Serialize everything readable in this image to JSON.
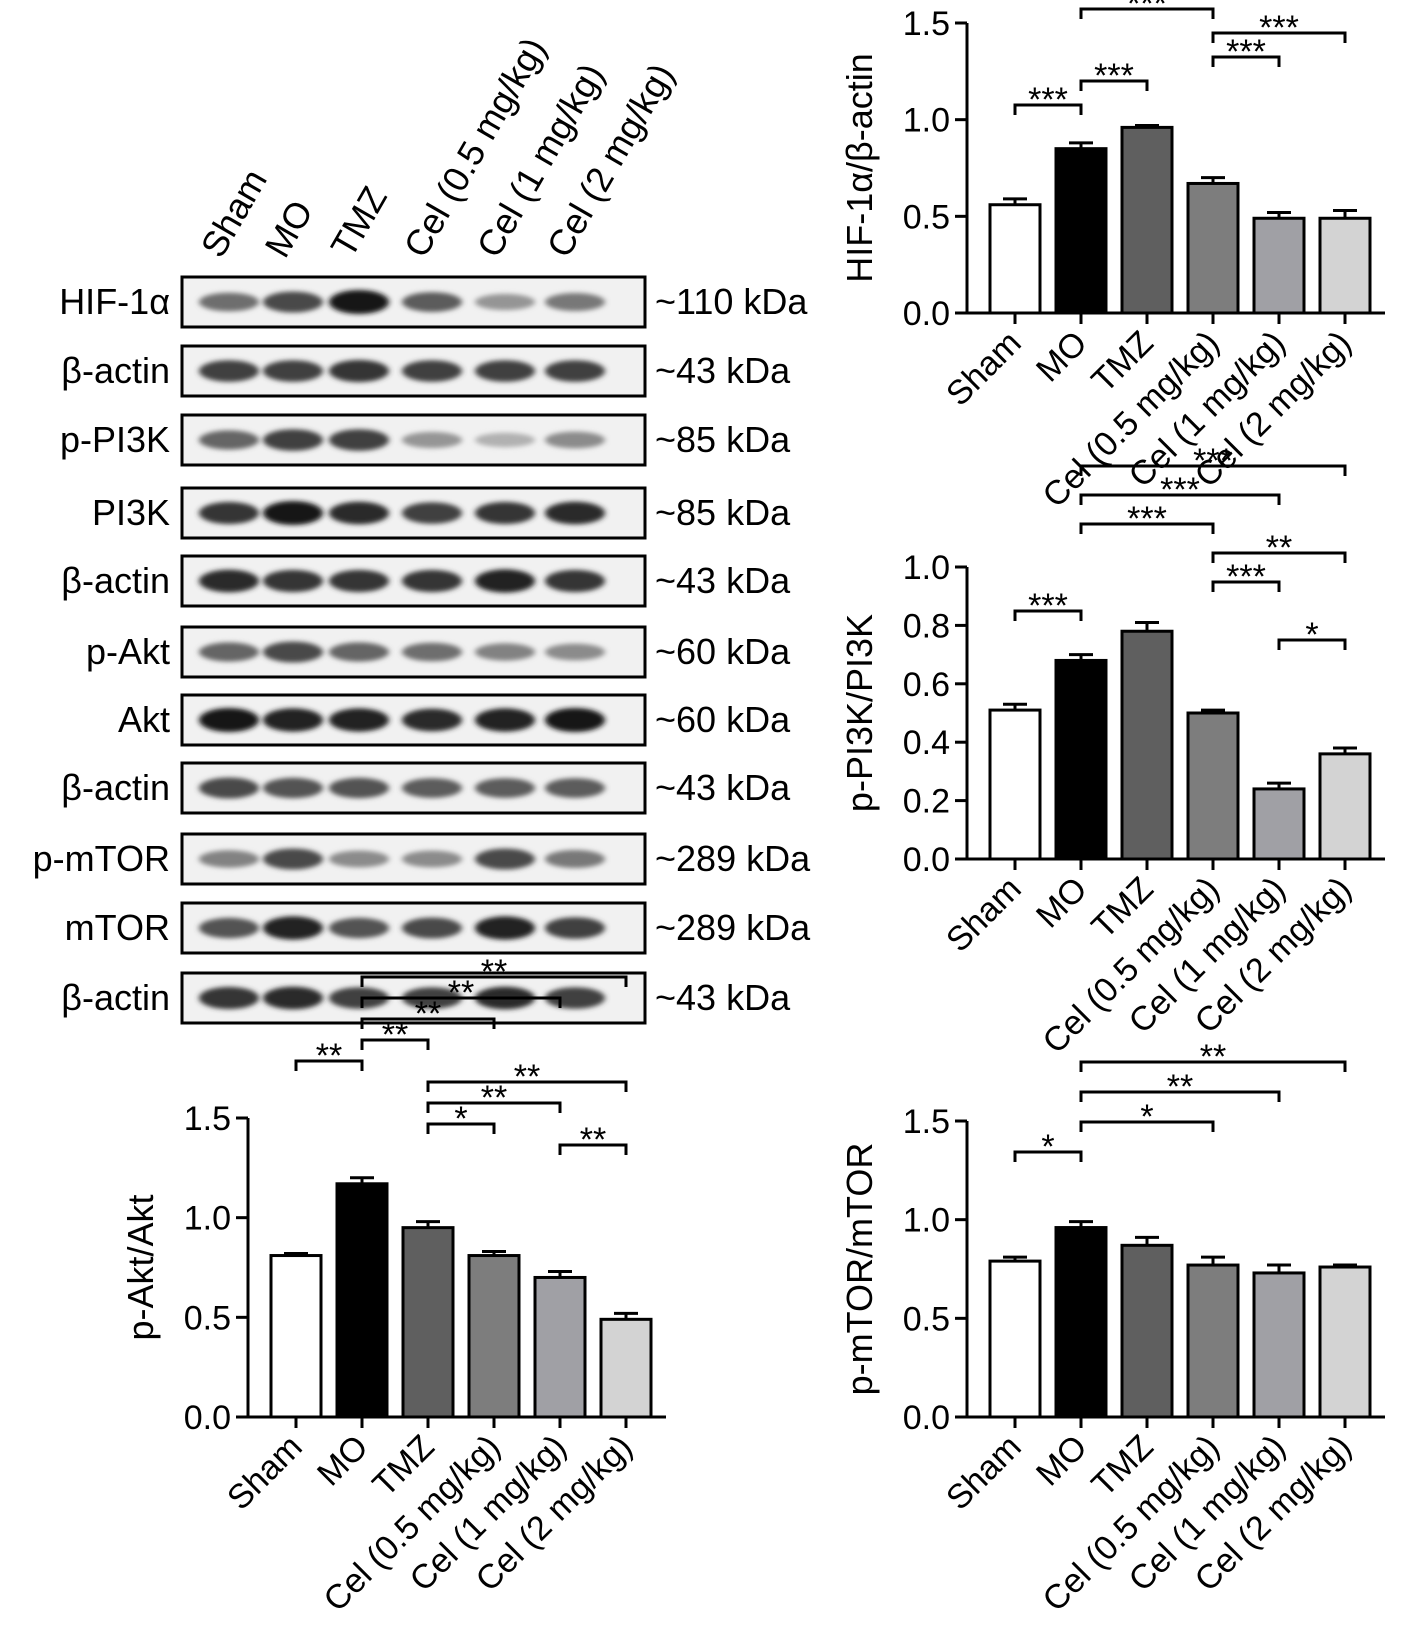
{
  "blot": {
    "lanes": [
      "Sham",
      "MO",
      "TMZ",
      "Cel (0.5 mg/kg)",
      "Cel (1 mg/kg)",
      "Cel (2 mg/kg)"
    ],
    "rows": [
      {
        "label": "HIF-1α",
        "size": "~110 kDa",
        "intensity": [
          0.55,
          0.75,
          1.0,
          0.65,
          0.35,
          0.5
        ]
      },
      {
        "label": "β-actin",
        "size": "~43 kDa",
        "intensity": [
          0.8,
          0.8,
          0.85,
          0.8,
          0.8,
          0.8
        ]
      },
      {
        "label": "p-PI3K",
        "size": "~85 kDa",
        "intensity": [
          0.6,
          0.8,
          0.8,
          0.35,
          0.2,
          0.4
        ]
      },
      {
        "label": "PI3K",
        "size": "~85 kDa",
        "intensity": [
          0.85,
          1.0,
          0.9,
          0.8,
          0.85,
          0.9
        ]
      },
      {
        "label": "β-actin",
        "size": "~43 kDa",
        "intensity": [
          0.9,
          0.85,
          0.85,
          0.85,
          0.95,
          0.85
        ]
      },
      {
        "label": "p-Akt",
        "size": "~60 kDa",
        "intensity": [
          0.6,
          0.75,
          0.6,
          0.55,
          0.45,
          0.4
        ]
      },
      {
        "label": "Akt",
        "size": "~60 kDa",
        "intensity": [
          1.0,
          0.95,
          0.95,
          0.9,
          0.95,
          1.0
        ]
      },
      {
        "label": "β-actin",
        "size": "~43 kDa",
        "intensity": [
          0.75,
          0.7,
          0.7,
          0.65,
          0.65,
          0.65
        ]
      },
      {
        "label": "p-mTOR",
        "size": "~289 kDa",
        "intensity": [
          0.45,
          0.75,
          0.4,
          0.4,
          0.75,
          0.5
        ]
      },
      {
        "label": "mTOR",
        "size": "~289 kDa",
        "intensity": [
          0.7,
          0.95,
          0.7,
          0.75,
          0.95,
          0.8
        ]
      },
      {
        "label": "β-actin",
        "size": "~43 kDa",
        "intensity": [
          0.85,
          0.9,
          0.8,
          0.8,
          0.9,
          0.8
        ]
      }
    ]
  },
  "colors": [
    "#ffffff",
    "#000000",
    "#5f5f5f",
    "#7d7d7d",
    "#a0a0a5",
    "#d3d3d3"
  ],
  "chart_data": [
    {
      "id": "hif",
      "type": "bar",
      "title": "",
      "xlabel": "",
      "ylabel": "HIF-1α/β-actin",
      "categories": [
        "Sham",
        "MO",
        "TMZ",
        "Cel (0.5 mg/kg)",
        "Cel (1 mg/kg)",
        "Cel (2 mg/kg)"
      ],
      "values": [
        0.56,
        0.85,
        0.96,
        0.67,
        0.49,
        0.49
      ],
      "errors": [
        0.03,
        0.03,
        0.01,
        0.03,
        0.03,
        0.04
      ],
      "ylim": [
        0,
        1.5
      ],
      "yticks": [
        "0.0",
        "0.5",
        "1.0",
        "1.5"
      ],
      "ytick_values": [
        0,
        0.5,
        1.0,
        1.5
      ],
      "significance": [
        {
          "from": 0,
          "to": 1,
          "label": "***"
        },
        {
          "from": 1,
          "to": 2,
          "label": "***"
        },
        {
          "from": 3,
          "to": 4,
          "label": "***"
        },
        {
          "from": 3,
          "to": 5,
          "label": "***"
        },
        {
          "from": 1,
          "to": 3,
          "label": "***"
        },
        {
          "from": 1,
          "to": 4,
          "label": "***"
        },
        {
          "from": 1,
          "to": 5,
          "label": "***"
        }
      ]
    },
    {
      "id": "pi3k",
      "type": "bar",
      "title": "",
      "xlabel": "",
      "ylabel": "p-PI3K/PI3K",
      "categories": [
        "Sham",
        "MO",
        "TMZ",
        "Cel (0.5 mg/kg)",
        "Cel (1 mg/kg)",
        "Cel (2 mg/kg)"
      ],
      "values": [
        0.51,
        0.68,
        0.78,
        0.5,
        0.24,
        0.36
      ],
      "errors": [
        0.02,
        0.02,
        0.03,
        0.01,
        0.02,
        0.02
      ],
      "ylim": [
        0,
        1.0
      ],
      "yticks": [
        "0.0",
        "0.2",
        "0.4",
        "0.6",
        "0.8",
        "1.0"
      ],
      "ytick_values": [
        0,
        0.2,
        0.4,
        0.6,
        0.8,
        1.0
      ],
      "significance": [
        {
          "from": 4,
          "to": 5,
          "label": "*"
        },
        {
          "from": 0,
          "to": 1,
          "label": "***"
        },
        {
          "from": 3,
          "to": 4,
          "label": "***"
        },
        {
          "from": 3,
          "to": 5,
          "label": "**"
        },
        {
          "from": 1,
          "to": 3,
          "label": "***"
        },
        {
          "from": 1,
          "to": 4,
          "label": "***"
        },
        {
          "from": 1,
          "to": 5,
          "label": "***"
        }
      ]
    },
    {
      "id": "akt",
      "type": "bar",
      "title": "",
      "xlabel": "",
      "ylabel": "p-Akt/Akt",
      "categories": [
        "Sham",
        "MO",
        "TMZ",
        "Cel (0.5 mg/kg)",
        "Cel (1 mg/kg)",
        "Cel (2 mg/kg)"
      ],
      "values": [
        0.81,
        1.17,
        0.95,
        0.81,
        0.7,
        0.49
      ],
      "errors": [
        0.01,
        0.03,
        0.03,
        0.02,
        0.03,
        0.03
      ],
      "ylim": [
        0,
        1.5
      ],
      "yticks": [
        "0.0",
        "0.5",
        "1.0",
        "1.5"
      ],
      "ytick_values": [
        0,
        0.5,
        1.0,
        1.5
      ],
      "significance": [
        {
          "from": 4,
          "to": 5,
          "label": "**"
        },
        {
          "from": 2,
          "to": 3,
          "label": "*"
        },
        {
          "from": 2,
          "to": 4,
          "label": "**"
        },
        {
          "from": 2,
          "to": 5,
          "label": "**"
        },
        {
          "from": 0,
          "to": 1,
          "label": "**"
        },
        {
          "from": 1,
          "to": 2,
          "label": "**"
        },
        {
          "from": 1,
          "to": 3,
          "label": "**"
        },
        {
          "from": 1,
          "to": 4,
          "label": "**"
        },
        {
          "from": 1,
          "to": 5,
          "label": "**"
        }
      ]
    },
    {
      "id": "mtor",
      "type": "bar",
      "title": "",
      "xlabel": "",
      "ylabel": "p-mTOR/mTOR",
      "categories": [
        "Sham",
        "MO",
        "TMZ",
        "Cel (0.5 mg/kg)",
        "Cel (1 mg/kg)",
        "Cel (2 mg/kg)"
      ],
      "values": [
        0.79,
        0.96,
        0.87,
        0.77,
        0.73,
        0.76
      ],
      "errors": [
        0.02,
        0.03,
        0.04,
        0.04,
        0.04,
        0.01
      ],
      "ylim": [
        0,
        1.5
      ],
      "yticks": [
        "0.0",
        "0.5",
        "1.0",
        "1.5"
      ],
      "ytick_values": [
        0,
        0.5,
        1.0,
        1.5
      ],
      "significance": [
        {
          "from": 0,
          "to": 1,
          "label": "*"
        },
        {
          "from": 1,
          "to": 3,
          "label": "*"
        },
        {
          "from": 1,
          "to": 4,
          "label": "**"
        },
        {
          "from": 1,
          "to": 5,
          "label": "**"
        }
      ]
    }
  ]
}
